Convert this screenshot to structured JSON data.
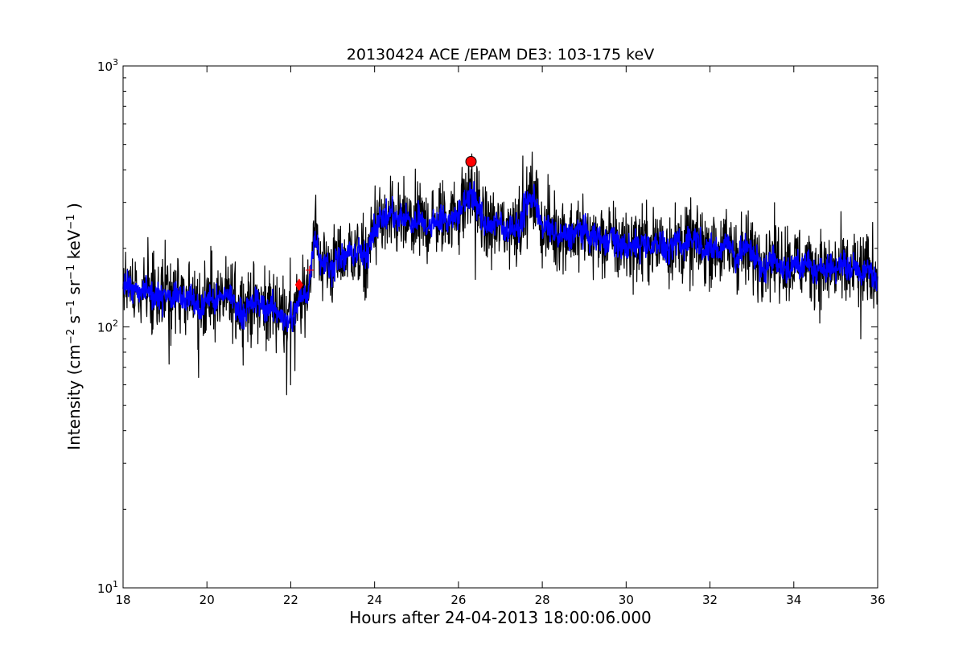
{
  "chart_data": {
    "type": "line",
    "title": "20130424 ACE /EPAM DE3: 103-175 keV",
    "xlabel": "Hours after 24-04-2013 18:00:06.000",
    "ylabel_parts": {
      "prefix": "Intensity (cm",
      "exp1": "−2",
      "s": " s",
      "exp2": "−1",
      "sr": " sr",
      "exp3": "−1",
      "kev": " keV",
      "exp4": "−1",
      "suffix": " )"
    },
    "xlim": [
      18,
      36
    ],
    "ylim": [
      10,
      1000
    ],
    "yscale": "log",
    "x_ticks": [
      18,
      20,
      22,
      24,
      26,
      28,
      30,
      32,
      34,
      36
    ],
    "y_ticks": [
      {
        "value": 10,
        "base": "10",
        "exp": "1"
      },
      {
        "value": 100,
        "base": "10",
        "exp": "2"
      },
      {
        "value": 1000,
        "base": "10",
        "exp": "3"
      }
    ],
    "grid": false,
    "series": [
      {
        "role": "raw",
        "color": "#000000",
        "profile_x": [
          18.0,
          19.0,
          20.0,
          21.0,
          21.6,
          22.0,
          22.3,
          22.45,
          22.55,
          22.7,
          23.0,
          23.5,
          23.8,
          24.0,
          24.5,
          25.0,
          25.5,
          26.0,
          26.2,
          26.35,
          26.6,
          27.0,
          27.4,
          27.7,
          27.85,
          28.0,
          29.0,
          30.0,
          31.0,
          32.0,
          33.0,
          34.0,
          35.0,
          36.0
        ],
        "profile_y": [
          140,
          130,
          127,
          122,
          118,
          112,
          125,
          150,
          240,
          180,
          170,
          200,
          175,
          250,
          250,
          245,
          255,
          275,
          310,
          330,
          245,
          240,
          250,
          305,
          310,
          240,
          225,
          205,
          210,
          205,
          190,
          175,
          165,
          160
        ],
        "dips": [
          {
            "x": 21.9,
            "y": 55
          },
          {
            "x": 22.0,
            "y": 60
          },
          {
            "x": 22.1,
            "y": 68
          },
          {
            "x": 19.1,
            "y": 72
          },
          {
            "x": 19.8,
            "y": 64
          },
          {
            "x": 26.4,
            "y": 152
          },
          {
            "x": 35.6,
            "y": 90
          }
        ],
        "spikes": [
          {
            "x": 26.3,
            "y": 400
          },
          {
            "x": 27.7,
            "y": 390
          },
          {
            "x": 19.0,
            "y": 215
          },
          {
            "x": 22.6,
            "y": 320
          },
          {
            "x": 24.6,
            "y": 320
          }
        ]
      },
      {
        "role": "smoothed",
        "color": "#0000ff"
      }
    ],
    "markers": [
      {
        "kind": "circle",
        "x": 26.3,
        "y": 430,
        "color": "#ff0000"
      },
      {
        "kind": "diamond",
        "x": 22.2,
        "y": 145,
        "color": "#ff0000"
      },
      {
        "kind": "plus",
        "x": 22.45,
        "y": 165,
        "color": "#ff0000"
      }
    ]
  }
}
